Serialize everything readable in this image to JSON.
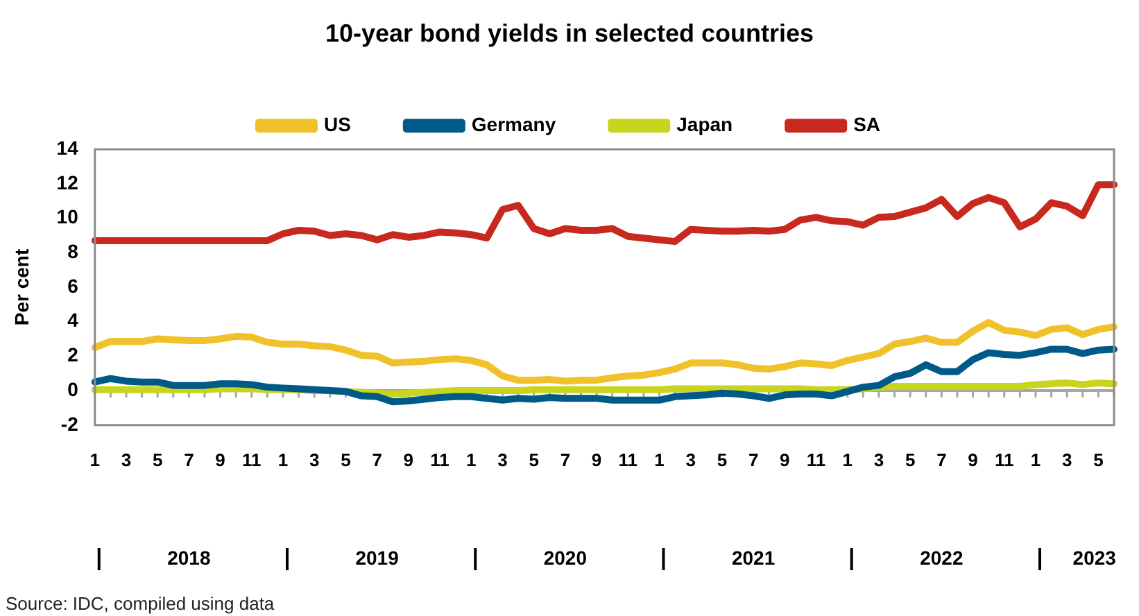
{
  "chart_data": {
    "type": "line",
    "title": "10-year bond yields in selected countries",
    "ylabel": "Per cent",
    "categories": [
      "1",
      null,
      "3",
      null,
      "5",
      null,
      "7",
      null,
      "9",
      null,
      "11",
      null,
      "1",
      null,
      "3",
      null,
      "5",
      null,
      "7",
      null,
      "9",
      null,
      "11",
      null,
      "1",
      null,
      "3",
      null,
      "5",
      null,
      "7",
      null,
      "9",
      null,
      "11",
      null,
      "1",
      null,
      "3",
      null,
      "5",
      null,
      "7",
      null,
      "9",
      null,
      "11",
      null,
      "1",
      null,
      "3",
      null,
      "5",
      null,
      "7",
      null,
      "9",
      null,
      "11",
      null,
      "1",
      null,
      "3",
      null,
      "5",
      null
    ],
    "series": [
      {
        "name": "US",
        "color": "#f0c12a",
        "values": [
          2.5,
          2.85,
          2.85,
          2.85,
          3.0,
          2.95,
          2.9,
          2.9,
          3.0,
          3.15,
          3.1,
          2.8,
          2.7,
          2.7,
          2.6,
          2.55,
          2.35,
          2.05,
          2.0,
          1.6,
          1.65,
          1.7,
          1.8,
          1.85,
          1.75,
          1.5,
          0.85,
          0.6,
          0.6,
          0.65,
          0.55,
          0.6,
          0.6,
          0.75,
          0.85,
          0.9,
          1.05,
          1.25,
          1.6,
          1.6,
          1.6,
          1.5,
          1.3,
          1.25,
          1.4,
          1.6,
          1.55,
          1.45,
          1.75,
          1.95,
          2.15,
          2.7,
          2.85,
          3.05,
          2.8,
          2.8,
          3.45,
          3.95,
          3.5,
          3.4,
          3.2,
          3.55,
          3.65,
          3.25,
          3.55,
          3.7
        ]
      },
      {
        "name": "Germany",
        "color": "#005a87",
        "values": [
          0.5,
          0.7,
          0.55,
          0.5,
          0.5,
          0.3,
          0.3,
          0.3,
          0.4,
          0.4,
          0.35,
          0.2,
          0.15,
          0.1,
          0.05,
          0.0,
          -0.05,
          -0.3,
          -0.35,
          -0.65,
          -0.6,
          -0.5,
          -0.4,
          -0.35,
          -0.35,
          -0.45,
          -0.55,
          -0.45,
          -0.5,
          -0.4,
          -0.45,
          -0.45,
          -0.45,
          -0.55,
          -0.55,
          -0.55,
          -0.55,
          -0.35,
          -0.3,
          -0.25,
          -0.15,
          -0.2,
          -0.3,
          -0.45,
          -0.25,
          -0.2,
          -0.2,
          -0.3,
          -0.05,
          0.2,
          0.3,
          0.8,
          1.0,
          1.5,
          1.1,
          1.1,
          1.8,
          2.2,
          2.1,
          2.05,
          2.2,
          2.4,
          2.4,
          2.15,
          2.35,
          2.4
        ]
      },
      {
        "name": "Japan",
        "color": "#c8d41e",
        "values": [
          0.05,
          0.05,
          0.05,
          0.05,
          0.05,
          0.05,
          0.05,
          0.05,
          0.1,
          0.1,
          0.1,
          0.05,
          0.05,
          0.05,
          0.0,
          0.0,
          -0.05,
          -0.1,
          -0.15,
          -0.2,
          -0.15,
          -0.1,
          -0.05,
          0.0,
          0.0,
          0.0,
          0.0,
          0.0,
          0.05,
          0.05,
          0.05,
          0.05,
          0.05,
          0.05,
          0.05,
          0.05,
          0.05,
          0.1,
          0.1,
          0.1,
          0.1,
          0.1,
          0.1,
          0.1,
          0.1,
          0.1,
          0.05,
          0.05,
          0.05,
          0.1,
          0.2,
          0.25,
          0.25,
          0.25,
          0.25,
          0.25,
          0.25,
          0.25,
          0.25,
          0.25,
          0.35,
          0.4,
          0.45,
          0.35,
          0.45,
          0.4
        ]
      },
      {
        "name": "SA",
        "color": "#c8281e",
        "values": [
          8.7,
          8.7,
          8.7,
          8.7,
          8.7,
          8.7,
          8.7,
          8.7,
          8.7,
          8.7,
          8.7,
          8.7,
          9.1,
          9.3,
          9.25,
          9.0,
          9.1,
          9.0,
          8.75,
          9.05,
          8.9,
          9.0,
          9.2,
          9.15,
          9.05,
          8.85,
          10.5,
          10.75,
          9.4,
          9.1,
          9.4,
          9.3,
          9.3,
          9.4,
          8.95,
          8.85,
          8.75,
          8.65,
          9.35,
          9.3,
          9.25,
          9.25,
          9.3,
          9.25,
          9.35,
          9.9,
          10.05,
          9.85,
          9.8,
          9.6,
          10.05,
          10.1,
          10.35,
          10.6,
          11.1,
          10.1,
          10.85,
          11.2,
          10.9,
          9.5,
          9.95,
          10.9,
          10.7,
          10.15,
          11.95,
          11.95
        ]
      }
    ],
    "ylim": [
      -2,
      14
    ],
    "yticks": [
      -2,
      0,
      2,
      4,
      6,
      8,
      10,
      12,
      14
    ],
    "ref_lines": [
      {
        "axis": "y",
        "value": 0,
        "color": "#a6a6a6"
      }
    ],
    "annotations": [
      "2018",
      "2019",
      "2020",
      "2021",
      "2022",
      "2023",
      "Source: IDC, compiled using data"
    ],
    "grid": false,
    "legend": "top",
    "marker": "none",
    "line_style": "solid"
  }
}
